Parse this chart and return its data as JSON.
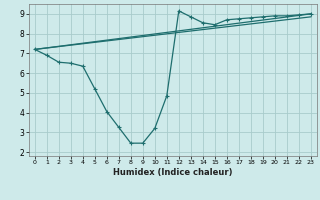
{
  "xlabel": "Humidex (Indice chaleur)",
  "bg_color": "#ceeaea",
  "grid_color": "#a8cccc",
  "line_color": "#1e6e6e",
  "xlim": [
    -0.5,
    23.5
  ],
  "ylim": [
    1.8,
    9.5
  ],
  "xticks": [
    0,
    1,
    2,
    3,
    4,
    5,
    6,
    7,
    8,
    9,
    10,
    11,
    12,
    13,
    14,
    15,
    16,
    17,
    18,
    19,
    20,
    21,
    22,
    23
  ],
  "yticks": [
    2,
    3,
    4,
    5,
    6,
    7,
    8,
    9
  ],
  "line1_x": [
    0,
    1,
    2,
    3,
    4,
    5,
    6,
    7,
    8,
    9,
    10,
    11,
    12,
    13,
    14,
    15,
    16,
    17,
    18,
    19,
    20,
    21,
    22,
    23
  ],
  "line1_y": [
    7.2,
    6.9,
    6.55,
    6.5,
    6.35,
    5.2,
    4.05,
    3.25,
    2.45,
    2.45,
    3.2,
    4.85,
    9.15,
    8.85,
    8.55,
    8.45,
    8.7,
    8.75,
    8.8,
    8.85,
    8.9,
    8.9,
    8.95,
    9.0
  ],
  "line2_x": [
    0,
    23
  ],
  "line2_y": [
    7.2,
    9.0
  ],
  "line3_x": [
    0,
    23
  ],
  "line3_y": [
    7.2,
    8.85
  ],
  "marker_x": [
    0,
    1,
    2,
    3,
    4,
    5,
    6,
    7,
    8,
    9,
    10,
    11,
    12,
    13,
    14,
    15,
    16,
    17,
    18,
    19,
    20,
    21,
    22,
    23
  ],
  "marker_y": [
    7.2,
    6.9,
    6.55,
    6.5,
    6.35,
    5.2,
    4.05,
    3.25,
    2.45,
    2.45,
    3.2,
    4.85,
    9.15,
    8.85,
    8.55,
    8.45,
    8.7,
    8.75,
    8.8,
    8.85,
    8.9,
    8.9,
    8.95,
    9.0
  ]
}
